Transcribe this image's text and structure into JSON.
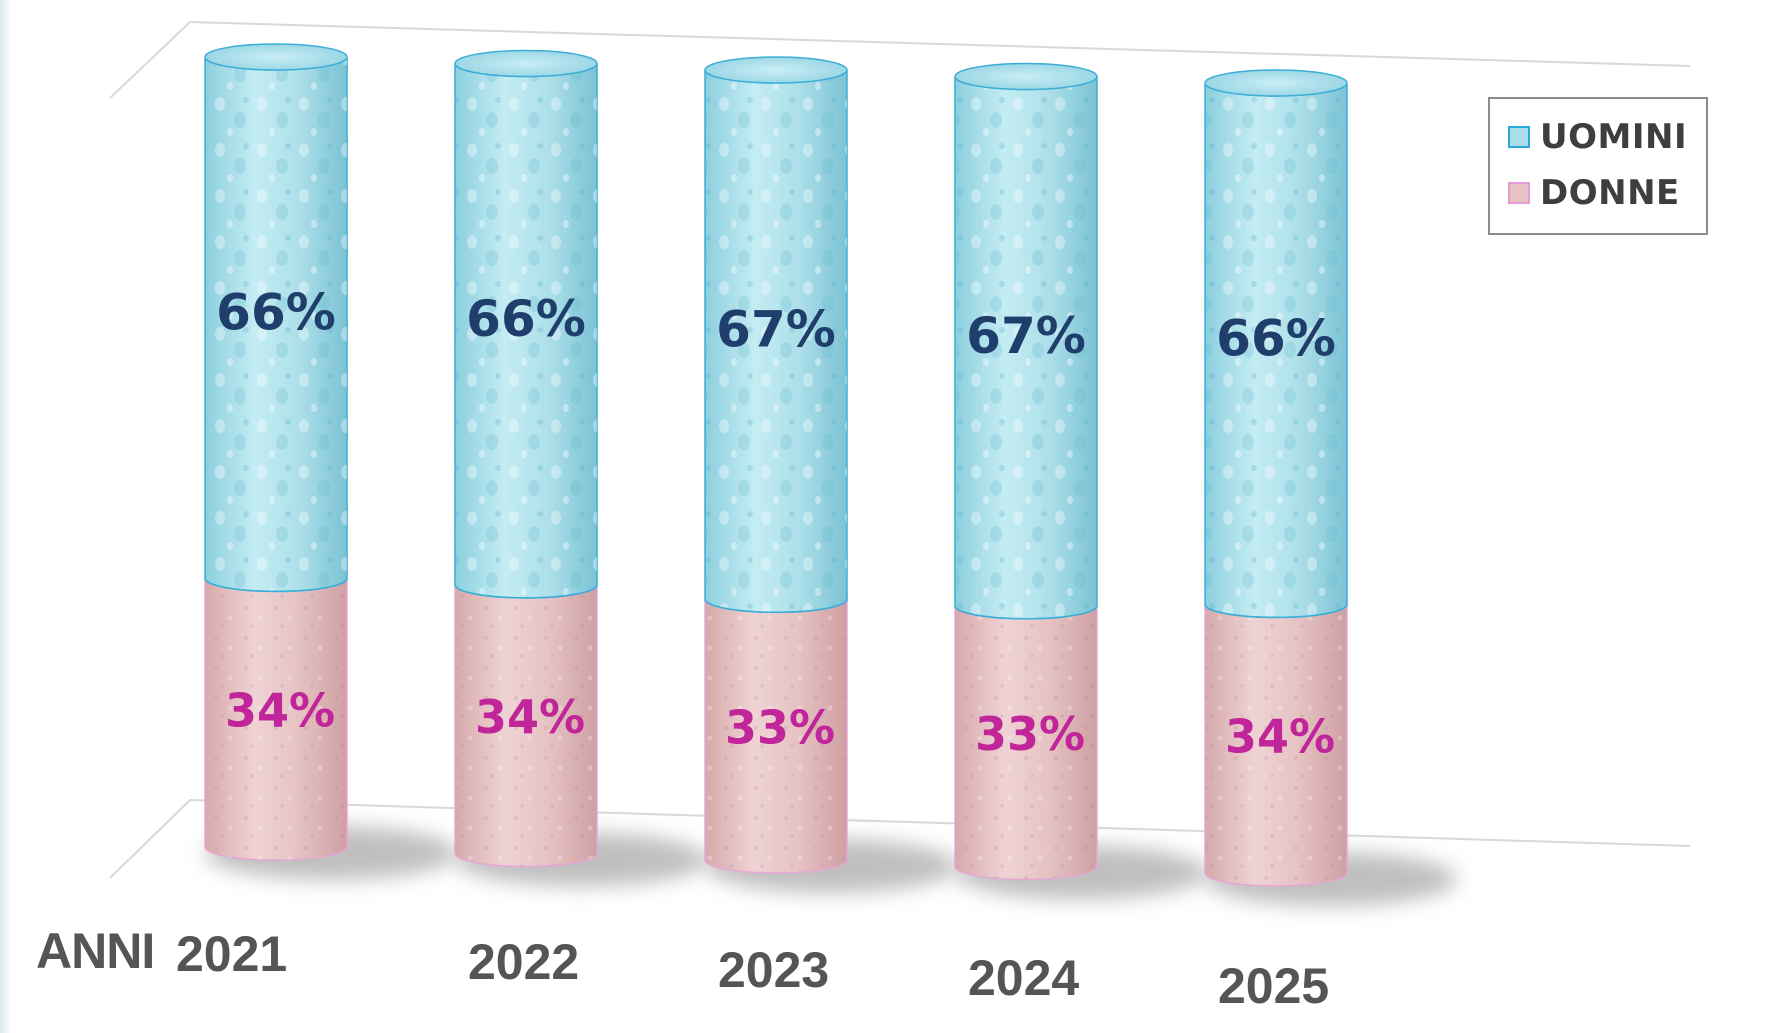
{
  "chart_data": {
    "type": "bar",
    "stacked": true,
    "style": "3d-cylinder",
    "x_axis_title": "ANNI",
    "categories": [
      "2021",
      "2022",
      "2023",
      "2024",
      "2025"
    ],
    "series": [
      {
        "name": "DONNE",
        "values": [
          34,
          34,
          33,
          33,
          34
        ],
        "labels": [
          "34%",
          "34%",
          "33%",
          "33%",
          "34%"
        ]
      },
      {
        "name": "UOMINI",
        "values": [
          66,
          66,
          67,
          67,
          66
        ],
        "labels": [
          "66%",
          "66%",
          "67%",
          "67%",
          "66%"
        ]
      }
    ],
    "ylim": [
      0,
      100
    ],
    "legend": {
      "position": "top-right",
      "items": [
        "UOMINI",
        "DONNE"
      ]
    },
    "colors": {
      "UOMINI": "#a9dde8",
      "DONNE": "#e7c2c3",
      "uomini_label": "#1f3e6b",
      "donne_label": "#c0259a",
      "axis_label": "#555555"
    }
  }
}
